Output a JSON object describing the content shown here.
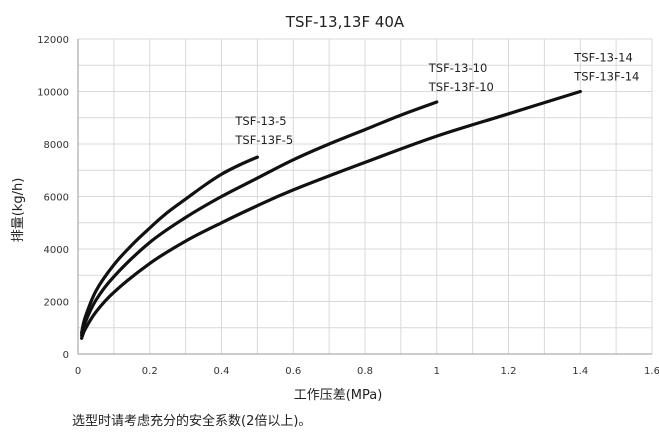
{
  "note": "选型时请考虑充分的安全系数(2倍以上)。",
  "chart_data": {
    "type": "line",
    "title": "TSF-13,13F 40A",
    "xlabel": "工作压差(MPa)",
    "ylabel": "排量(kg/h)",
    "xlim": [
      0,
      1.6
    ],
    "ylim": [
      0,
      12000
    ],
    "xticks": [
      "0",
      "0.2",
      "0.4",
      "0.6",
      "0.8",
      "1",
      "1.2",
      "1.4",
      "1.6"
    ],
    "yticks": [
      "0",
      "2000",
      "4000",
      "6000",
      "8000",
      "10000",
      "12000"
    ],
    "grid": true,
    "series": [
      {
        "name": "TSF-13-5 / TSF-13F-5",
        "labels": [
          "TSF-13-5",
          "TSF-13F-5"
        ],
        "x": [
          0.01,
          0.02,
          0.05,
          0.1,
          0.15,
          0.2,
          0.25,
          0.3,
          0.35,
          0.4,
          0.45,
          0.5
        ],
        "y": [
          800,
          1400,
          2400,
          3400,
          4150,
          4800,
          5400,
          5900,
          6400,
          6850,
          7200,
          7500
        ]
      },
      {
        "name": "TSF-13-10 / TSF-13F-10",
        "labels": [
          "TSF-13-10",
          "TSF-13F-10"
        ],
        "x": [
          0.01,
          0.02,
          0.05,
          0.1,
          0.2,
          0.3,
          0.4,
          0.5,
          0.6,
          0.7,
          0.8,
          0.9,
          1.0
        ],
        "y": [
          700,
          1200,
          2050,
          2950,
          4250,
          5200,
          6000,
          6700,
          7400,
          8000,
          8550,
          9100,
          9600
        ]
      },
      {
        "name": "TSF-13-14 / TSF-13F-14",
        "labels": [
          "TSF-13-14",
          "TSF-13F-14"
        ],
        "x": [
          0.01,
          0.02,
          0.05,
          0.1,
          0.2,
          0.3,
          0.4,
          0.5,
          0.6,
          0.8,
          1.0,
          1.2,
          1.4
        ],
        "y": [
          600,
          950,
          1600,
          2350,
          3450,
          4300,
          5000,
          5650,
          6250,
          7300,
          8300,
          9150,
          10000
        ]
      }
    ]
  }
}
